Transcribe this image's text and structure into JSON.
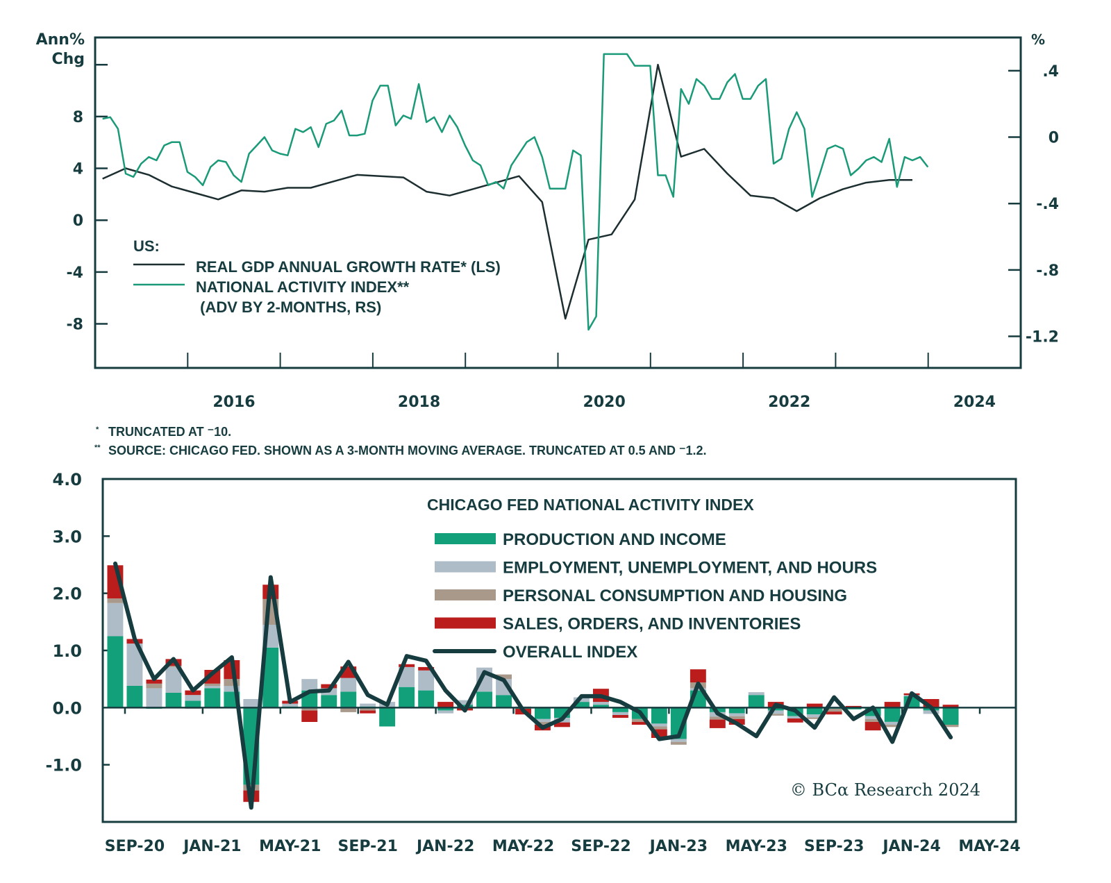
{
  "chart_data": [
    {
      "type": "line",
      "title": "",
      "ylabel_left": "Ann% Chg",
      "ylabel_left_lines": [
        "Ann%",
        "Chg"
      ],
      "ylabel_right": "%",
      "yticks_left": [
        {
          "value": 12,
          "label": ""
        },
        {
          "value": 8,
          "label": "8"
        },
        {
          "value": 4,
          "label": "4"
        },
        {
          "value": 0,
          "label": "0"
        },
        {
          "value": -4,
          "label": "-4"
        },
        {
          "value": -8,
          "label": "-8"
        }
      ],
      "yticks_right": [
        {
          "value": 0.4,
          "label": ".4"
        },
        {
          "value": 0,
          "label": "0"
        },
        {
          "value": -0.4,
          "label": "-.4"
        },
        {
          "value": -0.8,
          "label": "-.8"
        },
        {
          "value": -1.2,
          "label": "-1.2"
        }
      ],
      "ylim_left": [
        -11.4,
        14.1
      ],
      "ylim_right": [
        -1.39,
        0.6
      ],
      "xlim": [
        2015.0,
        2025.0
      ],
      "xticks": [
        2016,
        2017,
        2018,
        2019,
        2020,
        2021,
        2022,
        2023,
        2024
      ],
      "xlabels": [
        {
          "pos": 2016.5,
          "label": "2016"
        },
        {
          "pos": 2018.5,
          "label": "2018"
        },
        {
          "pos": 2020.5,
          "label": "2020"
        },
        {
          "pos": 2022.5,
          "label": "2022"
        },
        {
          "pos": 2024.5,
          "label": "2024"
        }
      ],
      "legend_heading": "US:",
      "legend_placement": "bottom-left",
      "series": [
        {
          "name": "REAL GDP ANNUAL GROWTH RATE* (LS)",
          "axis": "left",
          "color": "#1c2e30",
          "x": [
            2015.08,
            2015.33,
            2015.58,
            2015.83,
            2016.08,
            2016.33,
            2016.58,
            2016.83,
            2017.08,
            2017.33,
            2017.58,
            2017.83,
            2018.08,
            2018.33,
            2018.58,
            2018.83,
            2019.08,
            2019.33,
            2019.58,
            2019.83,
            2020.08,
            2020.33,
            2020.58,
            2020.83,
            2021.08,
            2021.33,
            2021.58,
            2021.83,
            2022.08,
            2022.33,
            2022.58,
            2022.83,
            2023.08,
            2023.33,
            2023.58,
            2023.83
          ],
          "values": [
            3.2,
            4.0,
            3.5,
            2.6,
            2.1,
            1.6,
            2.3,
            2.2,
            2.5,
            2.5,
            3.0,
            3.5,
            3.4,
            3.3,
            2.2,
            1.9,
            2.4,
            2.9,
            3.4,
            1.4,
            -7.6,
            -1.5,
            -1.1,
            1.6,
            12.0,
            4.9,
            5.5,
            3.6,
            1.9,
            1.7,
            0.7,
            1.7,
            2.4,
            2.9,
            3.1,
            3.1
          ]
        },
        {
          "name": "NATIONAL ACTIVITY INDEX** (ADV BY 2-MONTHS, RS)",
          "legend_lines": [
            "NATIONAL ACTIVITY INDEX**",
            " (ADV BY 2-MONTHS, RS)"
          ],
          "axis": "right",
          "color": "#1a9a78",
          "x_start": 2015.08,
          "x_step_months": 1,
          "values": [
            0.11,
            0.12,
            0.05,
            -0.22,
            -0.24,
            -0.16,
            -0.12,
            -0.14,
            -0.05,
            -0.03,
            -0.03,
            -0.21,
            -0.24,
            -0.29,
            -0.18,
            -0.14,
            -0.15,
            -0.23,
            -0.27,
            -0.1,
            -0.05,
            0.0,
            -0.08,
            -0.1,
            -0.11,
            0.05,
            0.03,
            0.06,
            -0.06,
            0.08,
            0.1,
            0.16,
            0.01,
            0.01,
            0.02,
            0.22,
            0.31,
            0.31,
            0.07,
            0.13,
            0.11,
            0.32,
            0.09,
            0.12,
            0.03,
            0.13,
            0.06,
            -0.05,
            -0.14,
            -0.17,
            -0.29,
            -0.27,
            -0.31,
            -0.17,
            -0.1,
            -0.03,
            0.0,
            -0.12,
            -0.31,
            -0.31,
            -0.31,
            -0.08,
            -0.11,
            -1.16,
            -1.08,
            0.5,
            0.5,
            0.5,
            0.5,
            0.43,
            0.43,
            0.43,
            -0.23,
            -0.23,
            -0.36,
            0.29,
            0.2,
            0.35,
            0.31,
            0.23,
            0.23,
            0.33,
            0.38,
            0.23,
            0.23,
            0.31,
            0.35,
            -0.16,
            -0.13,
            0.05,
            0.15,
            0.05,
            -0.36,
            -0.22,
            -0.07,
            -0.05,
            -0.07,
            -0.23,
            -0.19,
            -0.14,
            -0.12,
            -0.15,
            -0.01,
            -0.3,
            -0.12,
            -0.14,
            -0.12,
            -0.18
          ]
        }
      ]
    },
    {
      "type": "bar",
      "stacked": true,
      "title": "CHICAGO FED NATIONAL ACTIVITY INDEX",
      "ylim": [
        -2.0,
        4.0
      ],
      "yticks": [
        {
          "value": 4,
          "label": "4.0"
        },
        {
          "value": 3,
          "label": "3.0"
        },
        {
          "value": 2,
          "label": "2.0"
        },
        {
          "value": 1,
          "label": "1.0"
        },
        {
          "value": 0,
          "label": "0.0"
        },
        {
          "value": -1,
          "label": "-1.0"
        }
      ],
      "xlabels": [
        {
          "index": 1,
          "label": "SEP-20"
        },
        {
          "index": 5,
          "label": "JAN-21"
        },
        {
          "index": 9,
          "label": "MAY-21"
        },
        {
          "index": 13,
          "label": "SEP-21"
        },
        {
          "index": 17,
          "label": "JAN-22"
        },
        {
          "index": 21,
          "label": "MAY-22"
        },
        {
          "index": 25,
          "label": "SEP-22"
        },
        {
          "index": 29,
          "label": "JAN-23"
        },
        {
          "index": 33,
          "label": "MAY-23"
        },
        {
          "index": 37,
          "label": "SEP-23"
        },
        {
          "index": 41,
          "label": "JAN-24"
        },
        {
          "index": 45,
          "label": "MAY-24"
        }
      ],
      "n_slots": 47,
      "legend_placement": "top-right",
      "categories": [
        "AUG-20",
        "SEP-20",
        "OCT-20",
        "NOV-20",
        "DEC-20",
        "JAN-21",
        "FEB-21",
        "MAR-21",
        "APR-21",
        "MAY-21",
        "JUN-21",
        "JUL-21",
        "AUG-21",
        "SEP-21",
        "OCT-21",
        "NOV-21",
        "DEC-21",
        "JAN-22",
        "FEB-22",
        "MAR-22",
        "APR-22",
        "MAY-22",
        "JUN-22",
        "JUL-22",
        "AUG-22",
        "SEP-22",
        "OCT-22",
        "NOV-22",
        "DEC-22",
        "JAN-23",
        "FEB-23",
        "MAR-23",
        "APR-23",
        "MAY-23",
        "JUN-23",
        "JUL-23",
        "AUG-23",
        "SEP-23",
        "OCT-23",
        "NOV-23",
        "DEC-23",
        "JAN-24",
        "FEB-24",
        "MAR-24"
      ],
      "series": [
        {
          "name": "PRODUCTION AND INCOME",
          "color": "#12a07a",
          "kind": "bar",
          "values": [
            1.25,
            0.38,
            -0.02,
            0.26,
            0.12,
            0.34,
            0.28,
            -1.35,
            1.05,
            0.02,
            0.3,
            0.22,
            0.28,
            0.02,
            -0.33,
            0.36,
            0.3,
            -0.05,
            0.05,
            0.28,
            0.22,
            -0.02,
            -0.2,
            -0.18,
            0.1,
            0.05,
            -0.08,
            -0.2,
            -0.28,
            -0.55,
            0.3,
            -0.08,
            -0.1,
            0.22,
            -0.05,
            -0.15,
            -0.12,
            -0.02,
            -0.03,
            -0.15,
            -0.25,
            0.2,
            -0.05,
            -0.3
          ]
        },
        {
          "name": "EMPLOYMENT, UNEMPLOYMENT, AND HOURS",
          "color": "#aebcc7",
          "kind": "bar",
          "values": [
            0.58,
            0.74,
            0.34,
            0.45,
            0.1,
            0.04,
            0.1,
            0.15,
            0.4,
            0.05,
            0.2,
            0.12,
            0.24,
            0.05,
            0.1,
            0.35,
            0.35,
            -0.05,
            0.08,
            0.42,
            0.28,
            0.02,
            -0.05,
            -0.08,
            0.08,
            0.05,
            -0.05,
            0.0,
            -0.05,
            -0.05,
            0.04,
            -0.08,
            -0.05,
            0.05,
            -0.06,
            -0.04,
            -0.05,
            0.0,
            0.0,
            -0.05,
            -0.05,
            0.02,
            -0.06,
            0.0
          ]
        },
        {
          "name": "PERSONAL CONSUMPTION AND HOUSING",
          "color": "#a9998a",
          "kind": "bar",
          "values": [
            0.08,
            0.0,
            0.08,
            0.02,
            -0.02,
            0.04,
            0.12,
            -0.1,
            0.45,
            0.0,
            -0.05,
            0.0,
            -0.08,
            -0.05,
            0.0,
            0.0,
            0.0,
            0.0,
            0.0,
            0.0,
            0.08,
            0.0,
            -0.05,
            0.0,
            0.0,
            0.0,
            0.0,
            -0.05,
            -0.05,
            -0.05,
            0.1,
            -0.05,
            -0.05,
            0.0,
            -0.03,
            0.0,
            -0.03,
            -0.05,
            0.0,
            -0.05,
            -0.04,
            0.0,
            0.0,
            -0.04
          ]
        },
        {
          "name": "SALES, ORDERS, AND INVENTORIES",
          "color": "#bb1c1c",
          "kind": "bar",
          "values": [
            0.58,
            0.08,
            0.07,
            0.12,
            0.08,
            0.24,
            0.33,
            -0.2,
            0.25,
            0.05,
            -0.2,
            0.07,
            0.2,
            -0.05,
            0.0,
            0.05,
            0.06,
            0.1,
            -0.05,
            0.0,
            0.0,
            -0.1,
            -0.1,
            -0.08,
            0.0,
            0.23,
            -0.05,
            -0.05,
            -0.15,
            0.0,
            0.23,
            -0.15,
            -0.1,
            0.0,
            0.1,
            -0.07,
            0.07,
            -0.05,
            0.03,
            -0.15,
            0.1,
            0.03,
            0.15,
            0.05
          ]
        },
        {
          "name": "OVERALL INDEX",
          "color": "#173c3f",
          "kind": "line",
          "values": [
            2.52,
            1.2,
            0.5,
            0.85,
            0.3,
            0.6,
            0.88,
            -1.75,
            2.28,
            0.1,
            0.28,
            0.3,
            0.8,
            0.22,
            0.05,
            0.9,
            0.82,
            0.3,
            -0.05,
            0.62,
            0.48,
            -0.05,
            -0.35,
            -0.2,
            0.2,
            0.2,
            0.1,
            -0.08,
            -0.55,
            -0.5,
            0.42,
            -0.1,
            -0.28,
            -0.5,
            0.05,
            -0.05,
            -0.35,
            0.18,
            -0.2,
            0.0,
            -0.6,
            0.25,
            0.0,
            -0.52
          ]
        }
      ]
    }
  ],
  "top_chart": {
    "ylabel_left_line1": "Ann%",
    "ylabel_left_line2": "Chg",
    "ylabel_right": "%",
    "legend_heading": "US:",
    "legend_gdp": "REAL GDP ANNUAL GROWTH RATE* (LS)",
    "legend_cfnai_line1": "NATIONAL ACTIVITY INDEX**",
    "legend_cfnai_line2": " (ADV BY 2-MONTHS, RS)"
  },
  "footnotes": {
    "note1_mark": "*",
    "note1": "TRUNCATED AT ⁻10.",
    "note2_mark": "**",
    "note2": "SOURCE: CHICAGO FED. SHOWN AS A 3-MONTH MOVING AVERAGE. TRUNCATED AT 0.5 AND ⁻1.2."
  },
  "bottom_chart": {
    "legend_title": "CHICAGO FED NATIONAL ACTIVITY INDEX",
    "copyright": "© BCα Research 2024"
  }
}
